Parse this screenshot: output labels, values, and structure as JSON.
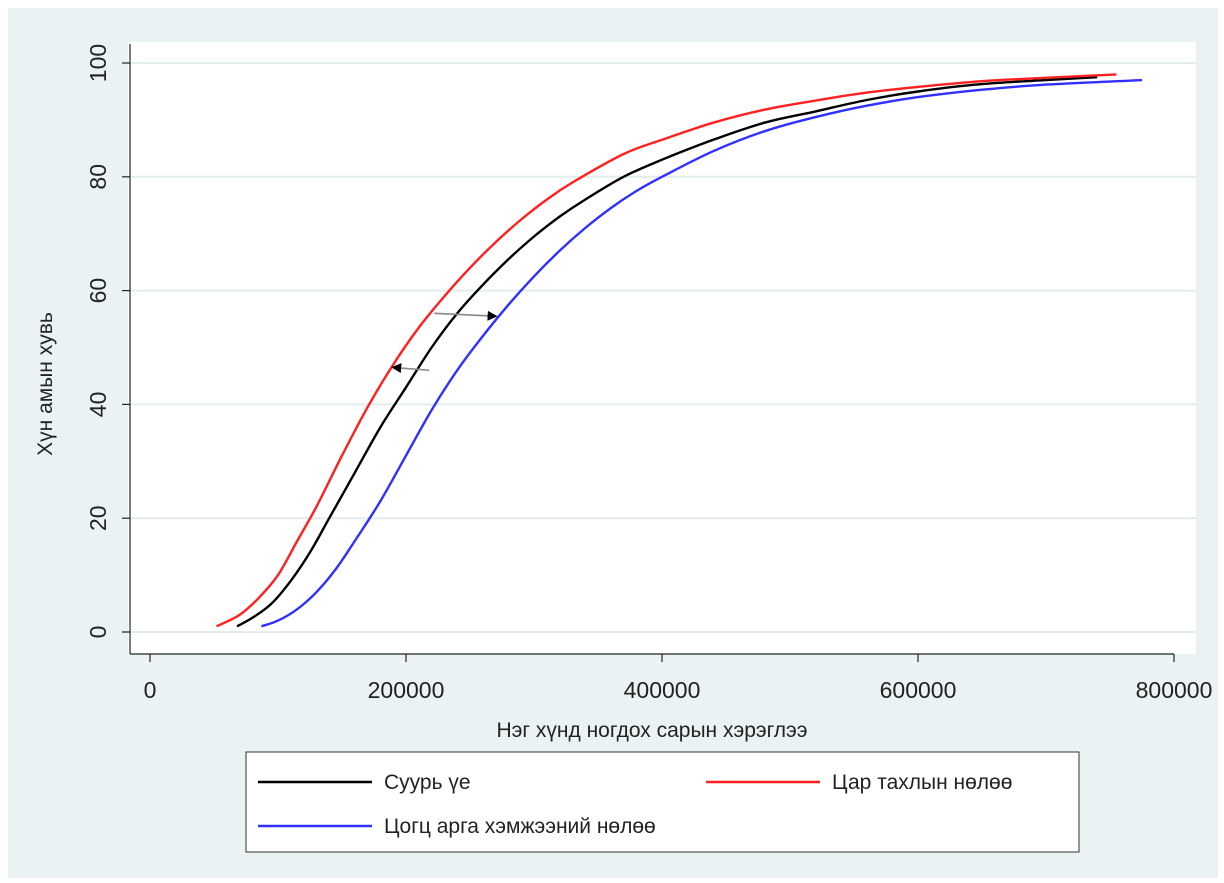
{
  "chart_data": {
    "type": "line",
    "xlabel": "Нэг хүнд ногдох сарын хэрэглээ",
    "ylabel": "Хүн амын хувь",
    "xlim": [
      0,
      800000
    ],
    "ylim": [
      0,
      100
    ],
    "xticks": [
      0,
      200000,
      400000,
      600000,
      800000
    ],
    "xtick_labels": [
      "0",
      "200000",
      "400000",
      "600000",
      "800000"
    ],
    "yticks": [
      0,
      20,
      40,
      60,
      80,
      100
    ],
    "ytick_labels": [
      "0",
      "20",
      "40",
      "60",
      "80",
      "100"
    ],
    "grid": "horizontal",
    "legend_position": "bottom",
    "series": [
      {
        "name": "Суурь үе",
        "color": "#000000",
        "x": [
          68000,
          80000,
          95000,
          110000,
          125000,
          140000,
          160000,
          180000,
          200000,
          220000,
          240000,
          260000,
          280000,
          300000,
          320000,
          340000,
          370000,
          400000,
          440000,
          480000,
          520000,
          560000,
          600000,
          650000,
          700000,
          740000
        ],
        "y": [
          1,
          2.5,
          5,
          9,
          14,
          20,
          28,
          36,
          43,
          50,
          56,
          61,
          65.5,
          69.5,
          73,
          76,
          80,
          83,
          86.5,
          89.5,
          91.5,
          93.5,
          95,
          96.3,
          97,
          97.5
        ]
      },
      {
        "name": "Цар тахлын нөлөө",
        "color": "#ff2020",
        "x": [
          52000,
          70000,
          85000,
          100000,
          115000,
          130000,
          150000,
          170000,
          190000,
          210000,
          230000,
          250000,
          270000,
          290000,
          310000,
          330000,
          370000,
          400000,
          440000,
          480000,
          520000,
          560000,
          600000,
          650000,
          700000,
          755000
        ],
        "y": [
          1,
          3,
          6,
          10,
          16,
          22,
          31,
          39.5,
          47,
          53.5,
          59,
          64,
          68.5,
          72.5,
          76,
          79,
          84,
          86.5,
          89.5,
          91.8,
          93.4,
          94.8,
          95.8,
          96.8,
          97.4,
          98
        ]
      },
      {
        "name": "Цогц арга хэмжээний нөлөө",
        "color": "#3030ff",
        "x": [
          87000,
          100000,
          115000,
          130000,
          145000,
          160000,
          180000,
          200000,
          220000,
          240000,
          260000,
          280000,
          300000,
          320000,
          340000,
          360000,
          380000,
          400000,
          440000,
          480000,
          520000,
          560000,
          600000,
          650000,
          700000,
          775000
        ],
        "y": [
          1,
          2,
          4,
          7,
          11,
          16,
          23,
          31,
          39,
          46,
          52,
          57.5,
          62.5,
          67,
          71,
          74.5,
          77.5,
          80,
          84.5,
          88,
          90.5,
          92.5,
          94,
          95.3,
          96.2,
          97
        ]
      }
    ],
    "annotations": [
      {
        "type": "arrow",
        "from": [
          222000,
          56
        ],
        "to": [
          270000,
          55.5
        ]
      },
      {
        "type": "arrow",
        "from": [
          218000,
          46
        ],
        "to": [
          190000,
          46.5
        ]
      }
    ]
  }
}
